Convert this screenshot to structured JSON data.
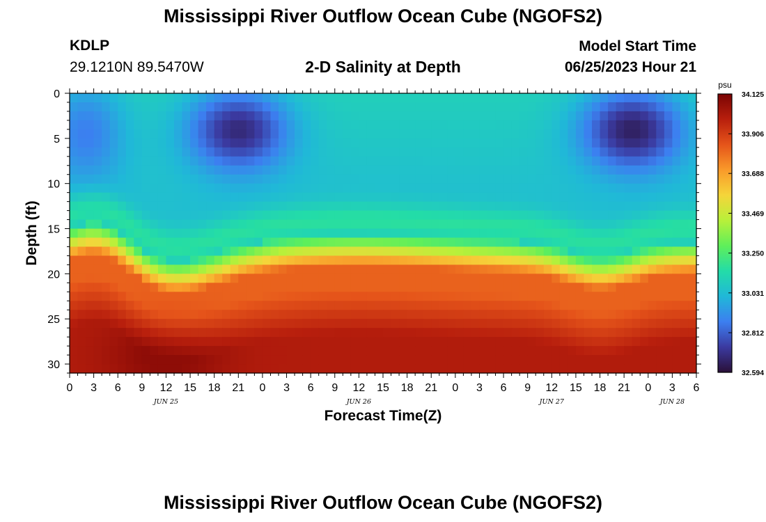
{
  "header": {
    "title": "Mississippi River Outflow Ocean Cube (NGOFS2)",
    "station_id": "KDLP",
    "coordinates": "29.1210N  89.5470W",
    "subtitle": "2-D Salinity at Depth",
    "model_start_label": "Model Start Time",
    "model_start_value": "06/25/2023 Hour 21"
  },
  "footer": {
    "title": "Mississippi River Outflow Ocean Cube (NGOFS2)"
  },
  "chart_data": {
    "type": "heatmap",
    "title": "2-D Salinity at Depth",
    "xlabel": "Forecast Time(Z)",
    "ylabel": "Depth (ft)",
    "x_ticks": [
      "0",
      "3",
      "6",
      "9",
      "12",
      "15",
      "18",
      "21",
      "0",
      "3",
      "6",
      "9",
      "12",
      "15",
      "18",
      "21",
      "0",
      "3",
      "6",
      "9",
      "12",
      "15",
      "18",
      "21",
      "0",
      "3",
      "6"
    ],
    "x_hours_range": [
      0,
      78
    ],
    "date_labels": [
      {
        "label": "JUN 25",
        "hour": 12
      },
      {
        "label": "JUN 26",
        "hour": 36
      },
      {
        "label": "JUN 27",
        "hour": 60
      },
      {
        "label": "JUN 28",
        "hour": 75
      }
    ],
    "y_ticks": [
      0,
      5,
      10,
      15,
      20,
      25,
      30
    ],
    "ylim": [
      0,
      31
    ],
    "y_inverted": true,
    "colorbar": {
      "unit": "psu",
      "ticks": [
        "34.125",
        "33.906",
        "33.688",
        "33.469",
        "33.250",
        "33.031",
        "32.812",
        "32.594"
      ],
      "range": [
        32.594,
        34.125
      ],
      "colors": [
        "#2a1038",
        "#3b3aa0",
        "#3c7ff0",
        "#20b8d8",
        "#23dca8",
        "#5fef5a",
        "#b8f03a",
        "#f5d53a",
        "#f99a2a",
        "#e5541a",
        "#b81f0d",
        "#7a0404"
      ]
    },
    "grid": false
  }
}
